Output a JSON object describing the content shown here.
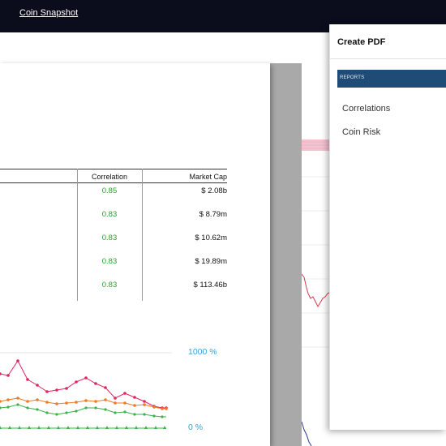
{
  "header": {
    "link_label": "Coin Snapshot"
  },
  "table": {
    "col_correlation": "Correlation",
    "col_market_cap": "Market Cap",
    "rows": [
      {
        "correlation": "0.85",
        "market_cap": "$ 2.08b"
      },
      {
        "correlation": "0.83",
        "market_cap": "$ 8.79m"
      },
      {
        "correlation": "0.83",
        "market_cap": "$ 10.62m"
      },
      {
        "correlation": "0.83",
        "market_cap": "$ 19.89m"
      },
      {
        "correlation": "0.83",
        "market_cap": "$ 113.46b"
      }
    ]
  },
  "preview_chart": {
    "y_top_label": "1000 %",
    "y_bottom_label": "0 %",
    "colors": {
      "pink": "#e0245e",
      "orange": "#f07a27",
      "green": "#3bb34a",
      "axis": "#3aa0d6"
    }
  },
  "modal": {
    "title": "Create PDF",
    "section_label": "REPORTS",
    "reports": [
      "Correlations",
      "Coin Risk"
    ]
  }
}
